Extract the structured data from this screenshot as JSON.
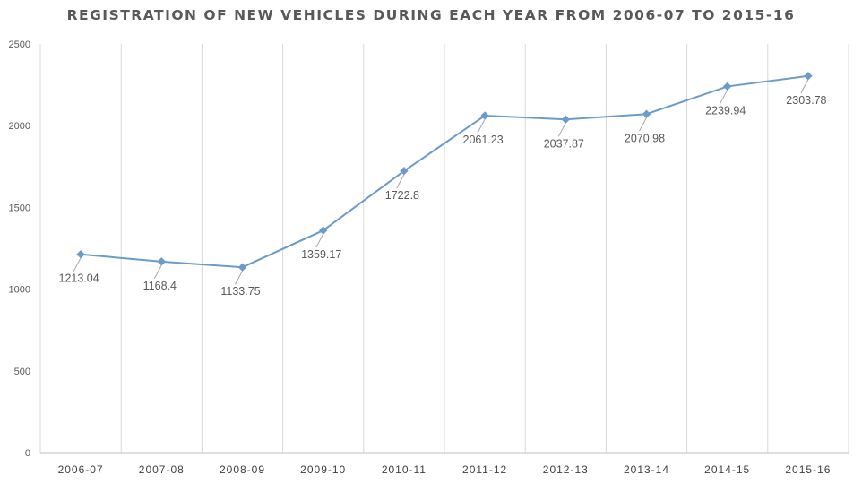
{
  "chart_data": {
    "type": "line",
    "title": "REGISTRATION OF NEW VEHICLES DURING EACH YEAR FROM 2006-07 TO 2015-16",
    "xlabel": "",
    "ylabel": "",
    "categories": [
      "2006-07",
      "2007-08",
      "2008-09",
      "2009-10",
      "2010-11",
      "2011-12",
      "2012-13",
      "2013-14",
      "2014-15",
      "2015-16"
    ],
    "series": [
      {
        "values": [
          1213.04,
          1168.4,
          1133.75,
          1359.17,
          1722.8,
          2061.23,
          2037.87,
          2070.98,
          2239.94,
          2303.78
        ],
        "labels": [
          "1213.04",
          "1168.4",
          "1133.75",
          "1359.17",
          "1722.8",
          "2061.23",
          "2037.87",
          "2070.98",
          "2239.94",
          "2303.78"
        ],
        "color": "#6b9bc9"
      }
    ],
    "ylim": [
      0,
      2500
    ],
    "yticks": [
      "0",
      "500",
      "1000",
      "1500",
      "2000",
      "2500"
    ],
    "grid": "vertical",
    "legend": "none"
  }
}
